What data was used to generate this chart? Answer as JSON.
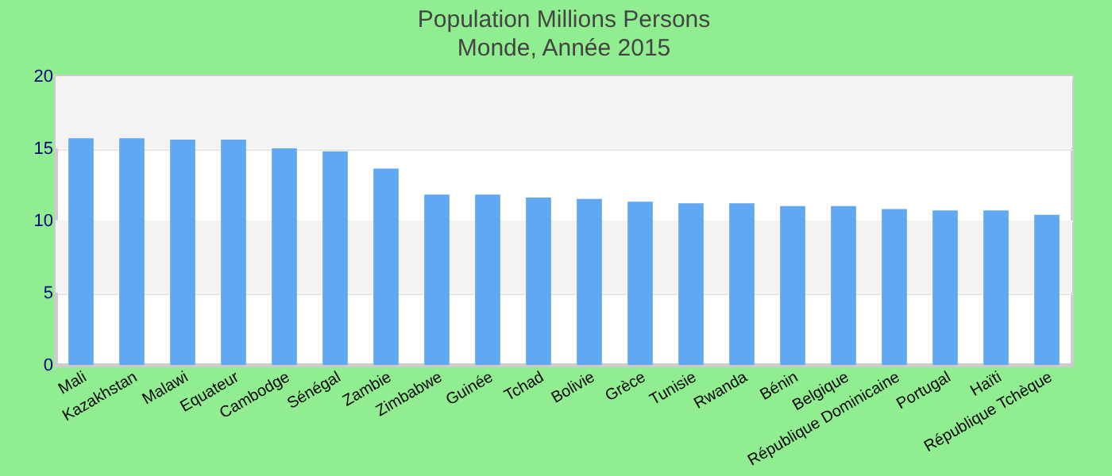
{
  "chart_data": {
    "type": "bar",
    "title": "Population Millions Persons",
    "subtitle": "Monde, Année 2015",
    "categories": [
      "Mali",
      "Kazakhstan",
      "Malawi",
      "Equateur",
      "Cambodge",
      "Sénégal",
      "Zambie",
      "Zimbabwe",
      "Guinée",
      "Tchad",
      "Bolivie",
      "Grèce",
      "Tunisie",
      "Rwanda",
      "Bénin",
      "Belgique",
      "République Dominicaine",
      "Portugal",
      "Haïti",
      "République Tchèque"
    ],
    "values": [
      15.7,
      15.7,
      15.6,
      15.6,
      15.0,
      14.8,
      13.6,
      11.8,
      11.8,
      11.6,
      11.5,
      11.3,
      11.2,
      11.2,
      11.0,
      11.0,
      10.8,
      10.7,
      10.7,
      10.4
    ],
    "color": "#60a8f4",
    "ylim": [
      0,
      20
    ],
    "yticks": [
      0,
      5,
      10,
      15,
      20
    ],
    "grid": true
  }
}
